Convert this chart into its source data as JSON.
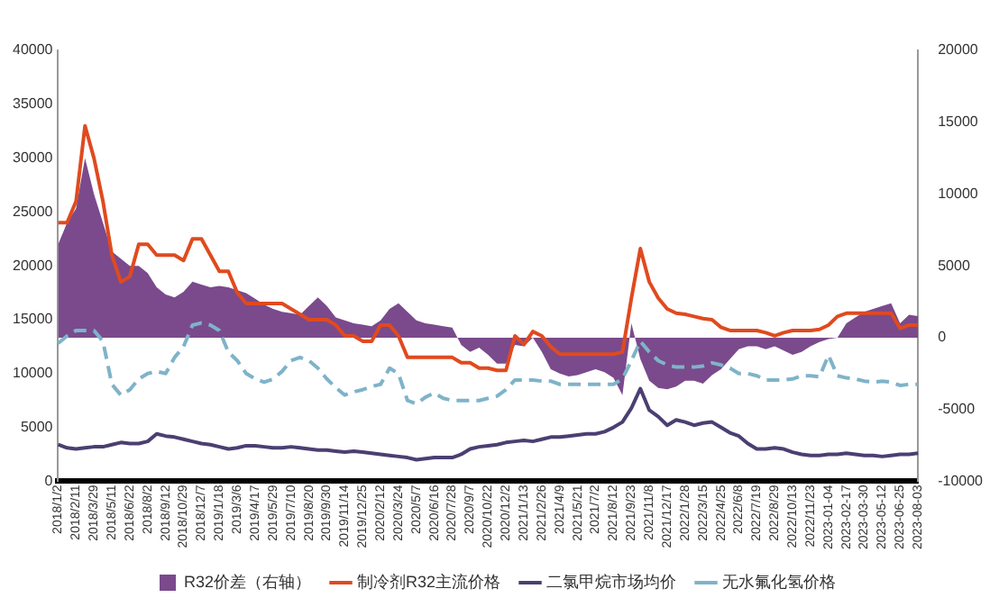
{
  "chart_data": {
    "type": "line",
    "categories": [
      "2018/1/2",
      null,
      "2018/2/11",
      null,
      "2018/3/29",
      null,
      "2018/5/11",
      null,
      "2018/6/22",
      null,
      "2018/8/2",
      null,
      "2018/9/12",
      null,
      "2018/10/29",
      null,
      "2018/12/7",
      null,
      "2019/1/18",
      null,
      "2019/3/6",
      null,
      "2019/4/17",
      null,
      "2019/5/29",
      null,
      "2019/7/10",
      null,
      "2019/8/20",
      null,
      "2019/9/30",
      null,
      "2019/11/14",
      null,
      "2019/12/25",
      null,
      "2020/2/12",
      null,
      "2020/3/24",
      null,
      "2020/5/7",
      null,
      "2020/6/16",
      null,
      "2020/7/28",
      null,
      "2020/9/7",
      null,
      "2020/10/22",
      null,
      "2020/12/2",
      null,
      "2021/1/13",
      null,
      "2021/2/26",
      null,
      "2021/4/9",
      null,
      "2021/5/21",
      null,
      "2021/7/2",
      null,
      "2021/8/12",
      null,
      "2021/9/23",
      null,
      "2021/11/8",
      null,
      "2021/12/17",
      null,
      "2022/1/28",
      null,
      "2022/3/15",
      null,
      "2022/4/25",
      null,
      "2022/6/8",
      null,
      "2022/7/19",
      null,
      "2022/8/29",
      null,
      "2022/10/13",
      null,
      "2022/11/23",
      null,
      "2023-01-04",
      null,
      "2023-02-17",
      null,
      "2023-03-30",
      null,
      "2023-05-12",
      null,
      "2023-06-25",
      null,
      "2023-08-03"
    ],
    "series": [
      {
        "name": "R32价差（右轴）",
        "type": "area",
        "axis": "y2",
        "color": "#7a4a8c",
        "values": [
          6500,
          8000,
          9000,
          12500,
          10000,
          8000,
          6000,
          5500,
          5000,
          5000,
          4500,
          3500,
          3000,
          2800,
          3200,
          3900,
          3700,
          3500,
          3600,
          3500,
          3300,
          3100,
          2700,
          2300,
          2000,
          1800,
          1700,
          1600,
          2200,
          2800,
          2200,
          1400,
          1200,
          1000,
          900,
          800,
          1200,
          2000,
          2400,
          1800,
          1200,
          1000,
          900,
          800,
          700,
          -500,
          -1000,
          -700,
          -1200,
          -1800,
          -1800,
          -500,
          -600,
          0,
          -1000,
          -2200,
          -2500,
          -2700,
          -2600,
          -2400,
          -2200,
          -2400,
          -2800,
          -4000,
          1000,
          -1500,
          -3000,
          -3500,
          -3600,
          -3400,
          -3000,
          -3000,
          -3200,
          -2600,
          -2200,
          -1500,
          -800,
          -600,
          -600,
          -800,
          -600,
          -900,
          -1200,
          -1000,
          -600,
          -300,
          -100,
          0,
          1000,
          1400,
          1800,
          2000,
          2200,
          2400,
          1000,
          1600,
          1500
        ]
      },
      {
        "name": "制冷剂R32主流价格",
        "type": "line",
        "color": "#e04a1f",
        "values": [
          24000,
          24000,
          26000,
          33000,
          30000,
          26000,
          21000,
          18500,
          19000,
          22000,
          22000,
          21000,
          21000,
          21000,
          20500,
          22500,
          22500,
          21000,
          19500,
          19500,
          17500,
          16500,
          16500,
          16500,
          16500,
          16500,
          16000,
          15500,
          15000,
          15000,
          15000,
          14500,
          13500,
          13500,
          13000,
          13000,
          14500,
          14500,
          13500,
          11500,
          11500,
          11500,
          11500,
          11500,
          11500,
          11000,
          11000,
          10500,
          10500,
          10300,
          10300,
          13500,
          12700,
          13900,
          13500,
          12500,
          11800,
          11800,
          11800,
          11800,
          11800,
          11800,
          11800,
          12000,
          17000,
          21600,
          18500,
          17000,
          16000,
          15600,
          15500,
          15300,
          15100,
          15000,
          14300,
          14000,
          14000,
          14000,
          14000,
          13800,
          13500,
          13800,
          14000,
          14000,
          14000,
          14100,
          14500,
          15300,
          15600,
          15600,
          15600,
          15600,
          15600,
          15600,
          14200,
          14500,
          14500
        ]
      },
      {
        "name": "二氯甲烷市场均价",
        "type": "line",
        "color": "#4b3f72",
        "values": [
          3400,
          3100,
          3000,
          3100,
          3200,
          3200,
          3400,
          3600,
          3500,
          3500,
          3700,
          4400,
          4200,
          4100,
          3900,
          3700,
          3500,
          3400,
          3200,
          3000,
          3100,
          3300,
          3300,
          3200,
          3100,
          3100,
          3200,
          3100,
          3000,
          2900,
          2900,
          2800,
          2700,
          2800,
          2700,
          2600,
          2500,
          2400,
          2300,
          2200,
          2000,
          2100,
          2200,
          2200,
          2200,
          2500,
          3000,
          3200,
          3300,
          3400,
          3600,
          3700,
          3800,
          3700,
          3900,
          4100,
          4100,
          4200,
          4300,
          4400,
          4400,
          4600,
          5000,
          5500,
          6800,
          8600,
          6600,
          6000,
          5200,
          5700,
          5500,
          5200,
          5400,
          5500,
          5000,
          4500,
          4200,
          3500,
          3000,
          3000,
          3100,
          3000,
          2700,
          2500,
          2400,
          2400,
          2500,
          2500,
          2600,
          2500,
          2400,
          2400,
          2300,
          2400,
          2500,
          2500,
          2600
        ]
      },
      {
        "name": "无水氟化氢价格",
        "type": "line",
        "line_style": "dashed",
        "color": "#7fb3c9",
        "values": [
          12800,
          13500,
          14000,
          14000,
          14000,
          13000,
          9000,
          8000,
          8500,
          9500,
          10000,
          10200,
          10000,
          11500,
          12500,
          14500,
          14700,
          14500,
          14000,
          12000,
          11200,
          10000,
          9500,
          9200,
          9500,
          10200,
          11200,
          11500,
          11200,
          10500,
          9500,
          8700,
          8000,
          8300,
          8500,
          8800,
          9000,
          10500,
          10000,
          7500,
          7200,
          7800,
          8200,
          7700,
          7500,
          7500,
          7500,
          7500,
          7700,
          7900,
          8500,
          9400,
          9400,
          9400,
          9300,
          9300,
          9000,
          9000,
          9000,
          9000,
          9000,
          9000,
          9000,
          9500,
          11200,
          13000,
          12000,
          11200,
          10800,
          10600,
          10600,
          10600,
          10700,
          11000,
          10800,
          10500,
          10000,
          10000,
          9800,
          9400,
          9400,
          9400,
          9500,
          9800,
          9800,
          9700,
          11700,
          9800,
          9600,
          9500,
          9300,
          9200,
          9300,
          9200,
          8900,
          9000,
          9000
        ]
      }
    ],
    "ylim": [
      0,
      40000
    ],
    "yticks": [
      0,
      5000,
      10000,
      15000,
      20000,
      25000,
      30000,
      35000,
      40000
    ],
    "y2lim": [
      -10000,
      20000
    ],
    "y2ticks": [
      -10000,
      -5000,
      0,
      5000,
      10000,
      15000,
      20000
    ],
    "grid": false,
    "legend": "bottom"
  }
}
